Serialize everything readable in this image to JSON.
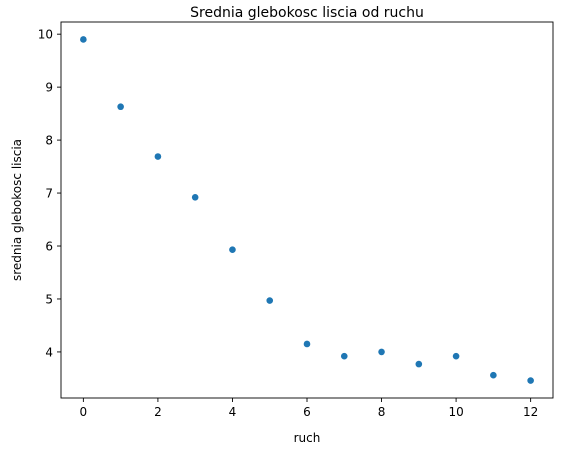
{
  "chart_data": {
    "type": "scatter",
    "title": "Srednia glebokosc liscia od ruchu",
    "xlabel": "ruch",
    "ylabel": "srednia glebokosc liscia",
    "x": [
      0,
      1,
      2,
      3,
      4,
      5,
      6,
      7,
      8,
      9,
      10,
      11,
      12
    ],
    "y": [
      9.9,
      8.63,
      7.69,
      6.92,
      5.93,
      4.97,
      4.15,
      3.92,
      4.0,
      3.77,
      3.92,
      3.56,
      3.46
    ],
    "xlim": [
      -0.6,
      12.6
    ],
    "ylim": [
      3.13,
      10.23
    ],
    "xticks": [
      "0",
      "2",
      "4",
      "6",
      "8",
      "10",
      "12"
    ],
    "yticks": [
      "4",
      "5",
      "6",
      "7",
      "8",
      "9",
      "10"
    ],
    "marker_color": "#1f77b4",
    "grid": false,
    "legend": "none"
  }
}
